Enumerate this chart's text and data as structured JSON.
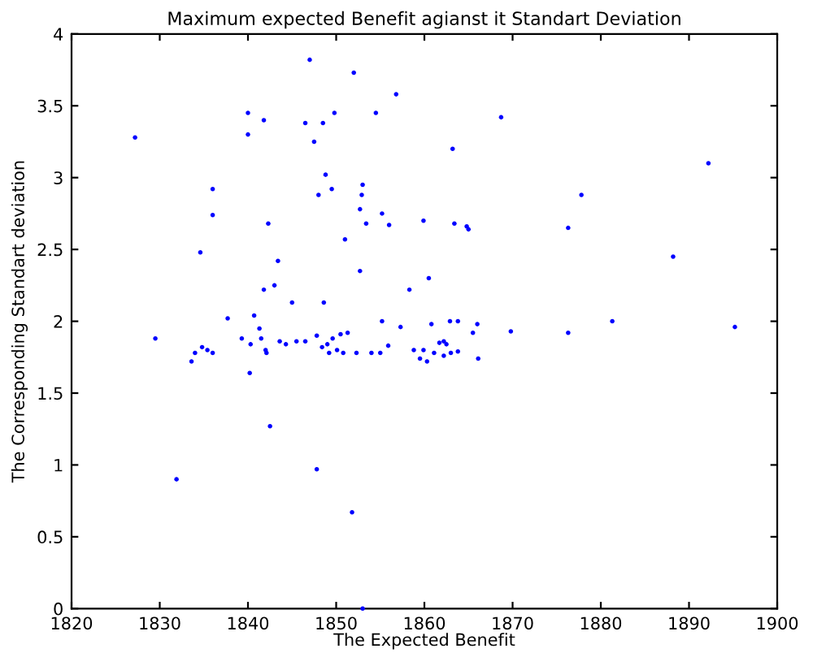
{
  "chart_data": {
    "type": "scatter",
    "title": "Maximum expected Benefit agianst it Standart Deviation",
    "xlabel": "The Expected Benefit",
    "ylabel": "The Corresponding Standart deviation",
    "xlim": [
      1820,
      1900
    ],
    "xticks": [
      1820,
      1830,
      1840,
      1850,
      1860,
      1870,
      1880,
      1890,
      1900
    ],
    "ylim": [
      0,
      4
    ],
    "yticks": [
      0,
      0.5,
      1,
      1.5,
      2,
      2.5,
      3,
      3.5,
      4
    ],
    "grid": false,
    "legend": false,
    "marker": "circle",
    "series": [
      {
        "color": "#0000ff",
        "x": [
          1827.2,
          1829.5,
          1831.9,
          1833.6,
          1834.0,
          1834.6,
          1834.8,
          1835.4,
          1836.0,
          1836.0,
          1836.0,
          1837.7,
          1839.3,
          1840.0,
          1840.0,
          1840.2,
          1840.3,
          1840.7,
          1841.3,
          1841.5,
          1841.8,
          1841.8,
          1842.0,
          1842.1,
          1842.3,
          1842.5,
          1843.0,
          1843.4,
          1843.6,
          1844.3,
          1845.0,
          1845.5,
          1846.5,
          1846.5,
          1847.0,
          1847.5,
          1847.8,
          1847.8,
          1848.0,
          1848.4,
          1848.5,
          1848.6,
          1848.8,
          1849.0,
          1849.2,
          1849.5,
          1849.6,
          1849.8,
          1850.1,
          1850.5,
          1850.8,
          1851.0,
          1851.3,
          1851.8,
          1852.0,
          1852.3,
          1852.7,
          1852.7,
          1852.9,
          1853.0,
          1853.0,
          1853.4,
          1854.0,
          1854.5,
          1855.0,
          1855.2,
          1855.2,
          1855.9,
          1856.0,
          1856.8,
          1857.3,
          1858.3,
          1858.8,
          1859.5,
          1859.9,
          1859.9,
          1860.3,
          1860.5,
          1860.8,
          1861.1,
          1861.7,
          1862.2,
          1862.2,
          1862.5,
          1862.9,
          1863.0,
          1863.2,
          1863.4,
          1863.8,
          1863.8,
          1864.8,
          1865.0,
          1865.5,
          1866.0,
          1866.1,
          1868.7,
          1869.8,
          1876.3,
          1876.3,
          1877.8,
          1881.3,
          1888.2,
          1892.2,
          1895.2
        ],
        "values": [
          3.28,
          1.88,
          0.9,
          1.72,
          1.78,
          2.48,
          1.82,
          1.8,
          2.92,
          2.74,
          1.78,
          2.02,
          1.88,
          3.45,
          3.3,
          1.64,
          1.84,
          2.04,
          1.95,
          1.88,
          3.4,
          2.22,
          1.8,
          1.78,
          2.68,
          1.27,
          2.25,
          2.42,
          1.86,
          1.84,
          2.13,
          1.86,
          1.86,
          3.38,
          3.82,
          3.25,
          1.9,
          0.97,
          2.88,
          1.82,
          3.38,
          2.13,
          3.02,
          1.84,
          1.78,
          2.92,
          1.88,
          3.45,
          1.8,
          1.91,
          1.78,
          2.57,
          1.92,
          0.67,
          3.73,
          1.78,
          2.35,
          2.78,
          2.88,
          2.95,
          0.0,
          2.68,
          1.78,
          3.45,
          1.78,
          2.0,
          2.75,
          1.83,
          2.67,
          3.58,
          1.96,
          2.22,
          1.8,
          1.74,
          2.7,
          1.8,
          1.72,
          2.3,
          1.98,
          1.78,
          1.85,
          1.86,
          1.76,
          1.84,
          2.0,
          1.78,
          3.2,
          2.68,
          2.0,
          1.79,
          2.66,
          2.64,
          1.92,
          1.98,
          1.74,
          3.42,
          1.93,
          2.65,
          1.92,
          2.88,
          2.0,
          2.45,
          3.1,
          1.96
        ]
      }
    ]
  }
}
